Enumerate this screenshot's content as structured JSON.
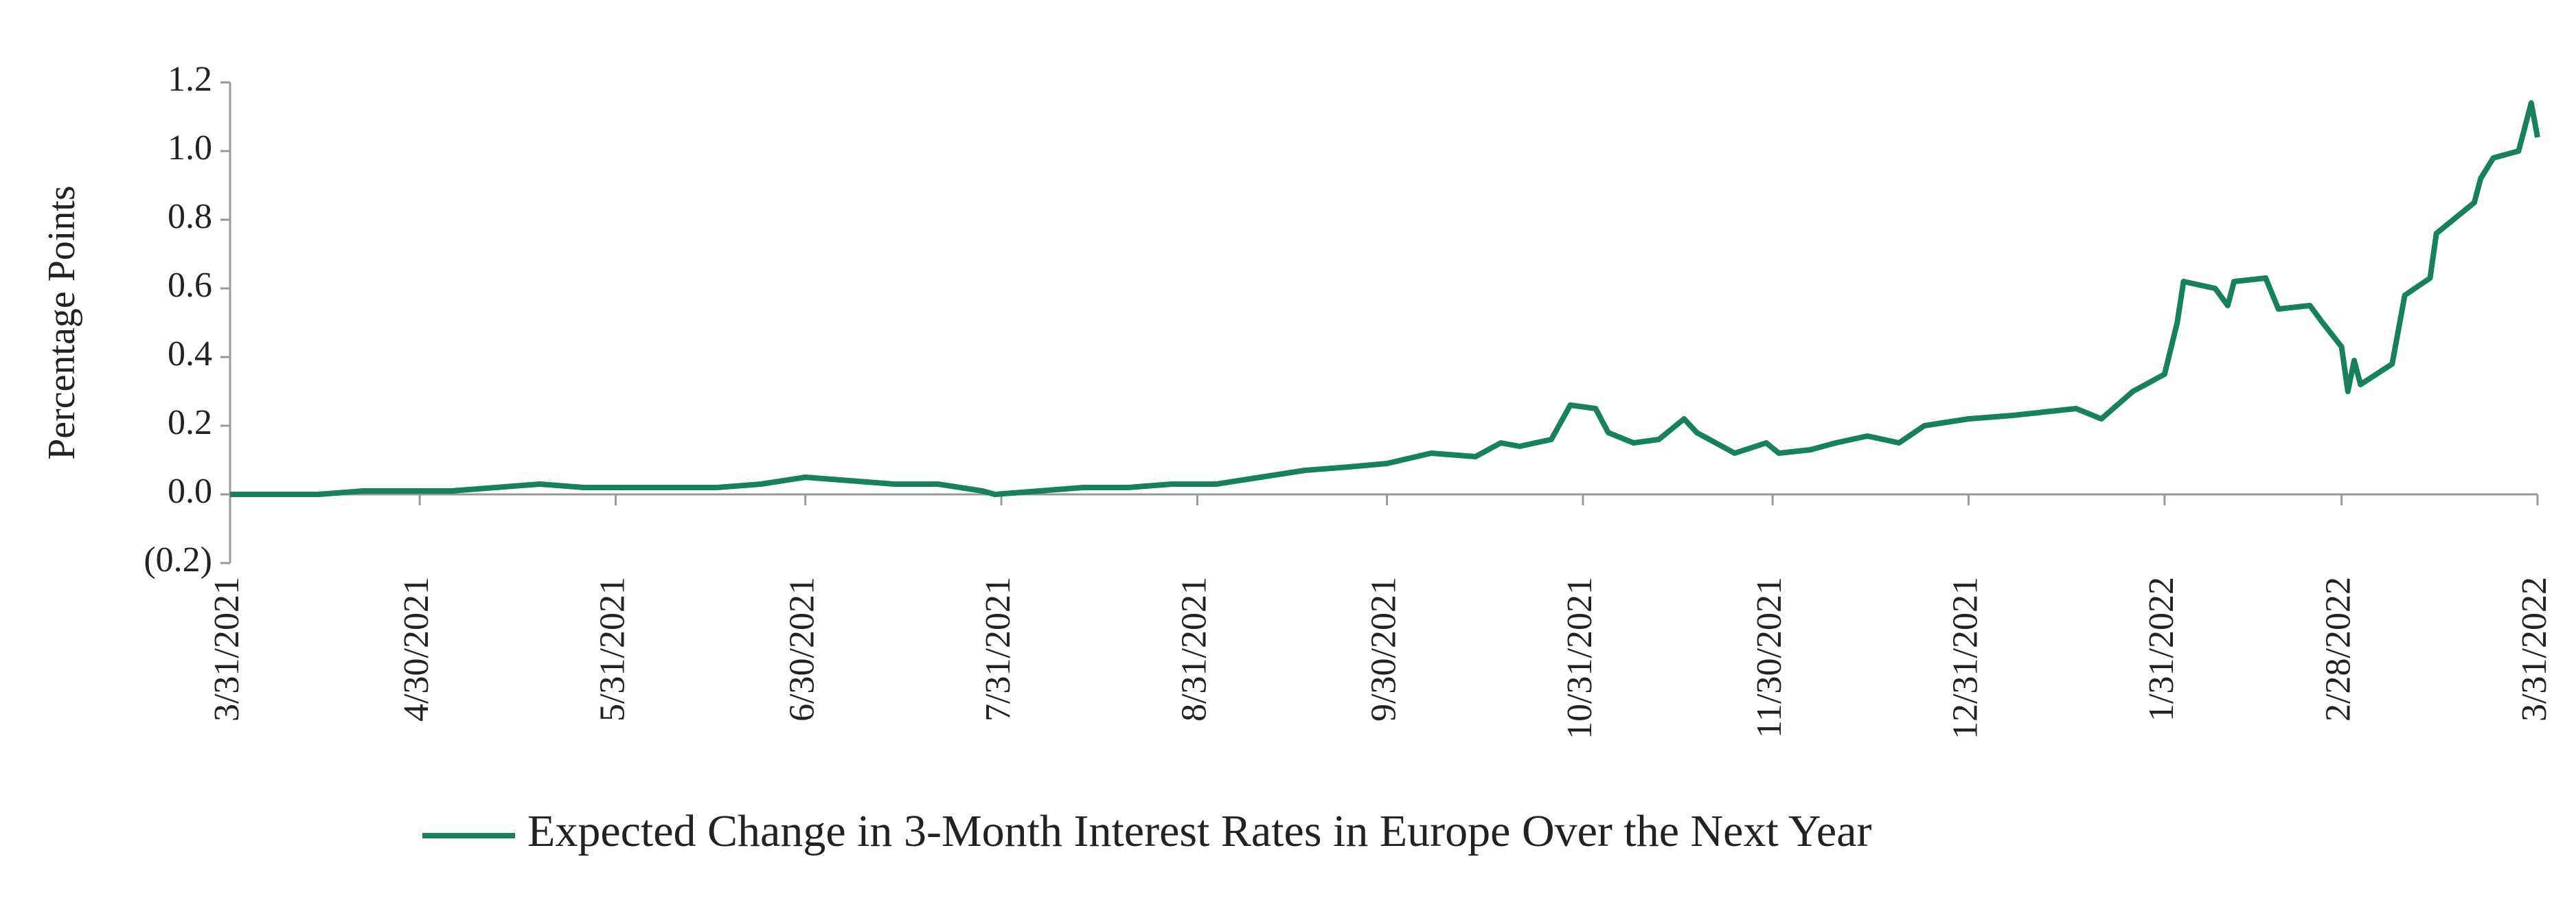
{
  "chart_data": {
    "type": "line",
    "ylabel": "Percentage Points",
    "ylim": [
      -0.2,
      1.2
    ],
    "yticks": [
      {
        "value": -0.2,
        "label": "(0.2)"
      },
      {
        "value": 0,
        "label": "0.0"
      },
      0.2,
      0.4,
      0.6,
      0.8,
      {
        "value": 1,
        "label": "1.0"
      },
      1.2
    ],
    "xlim": [
      "3/31/2021",
      "3/31/2022"
    ],
    "xticks": [
      "3/31/2021",
      "4/30/2021",
      "5/31/2021",
      "6/30/2021",
      "7/31/2021",
      "8/31/2021",
      "9/30/2021",
      "10/31/2021",
      "11/30/2021",
      "12/31/2021",
      "1/31/2022",
      "2/28/2022",
      "3/31/2022"
    ],
    "x": [
      "3/31/2021",
      "4/7/2021",
      "4/14/2021",
      "4/21/2021",
      "4/28/2021",
      "5/5/2021",
      "5/12/2021",
      "5/19/2021",
      "5/26/2021",
      "6/2/2021",
      "6/9/2021",
      "6/16/2021",
      "6/23/2021",
      "6/30/2021",
      "7/7/2021",
      "7/14/2021",
      "7/21/2021",
      "7/28/2021",
      "7/30/2021",
      "8/6/2021",
      "8/13/2021",
      "8/20/2021",
      "8/27/2021",
      "9/3/2021",
      "9/10/2021",
      "9/17/2021",
      "9/24/2021",
      "9/30/2021",
      "10/7/2021",
      "10/14/2021",
      "10/18/2021",
      "10/21/2021",
      "10/26/2021",
      "10/29/2021",
      "11/2/2021",
      "11/4/2021",
      "11/8/2021",
      "11/12/2021",
      "11/16/2021",
      "11/18/2021",
      "11/24/2021",
      "11/29/2021",
      "12/1/2021",
      "12/6/2021",
      "12/10/2021",
      "12/15/2021",
      "12/20/2021",
      "12/24/2021",
      "12/31/2021",
      "1/7/2022",
      "1/12/2022",
      "1/17/2022",
      "1/21/2022",
      "1/26/2022",
      "1/31/2022",
      "2/2/2022",
      "2/3/2022",
      "2/8/2022",
      "2/10/2022",
      "2/11/2022",
      "2/16/2022",
      "2/18/2022",
      "2/23/2022",
      "2/25/2022",
      "2/28/2022",
      "3/1/2022",
      "3/2/2022",
      "3/3/2022",
      "3/8/2022",
      "3/10/2022",
      "3/14/2022",
      "3/15/2022",
      "3/17/2022",
      "3/21/2022",
      "3/22/2022",
      "3/24/2022",
      "3/28/2022",
      "3/30/2022",
      "3/31/2022"
    ],
    "series": [
      {
        "name": "Expected Change in 3-Month Interest Rates in Europe Over the Next Year",
        "color": "#16805f",
        "values": [
          0.0,
          0.0,
          0.0,
          0.01,
          0.01,
          0.01,
          0.02,
          0.03,
          0.02,
          0.02,
          0.02,
          0.02,
          0.03,
          0.05,
          0.04,
          0.03,
          0.03,
          0.01,
          0.0,
          0.01,
          0.02,
          0.02,
          0.03,
          0.03,
          0.05,
          0.07,
          0.08,
          0.09,
          0.12,
          0.11,
          0.15,
          0.14,
          0.16,
          0.26,
          0.25,
          0.18,
          0.15,
          0.16,
          0.22,
          0.18,
          0.12,
          0.15,
          0.12,
          0.13,
          0.15,
          0.17,
          0.15,
          0.2,
          0.22,
          0.23,
          0.24,
          0.25,
          0.22,
          0.3,
          0.35,
          0.5,
          0.62,
          0.6,
          0.55,
          0.62,
          0.63,
          0.54,
          0.55,
          0.5,
          0.43,
          0.3,
          0.39,
          0.32,
          0.38,
          0.58,
          0.63,
          0.76,
          0.79,
          0.85,
          0.92,
          0.98,
          1.0,
          1.14,
          1.04
        ]
      }
    ]
  }
}
